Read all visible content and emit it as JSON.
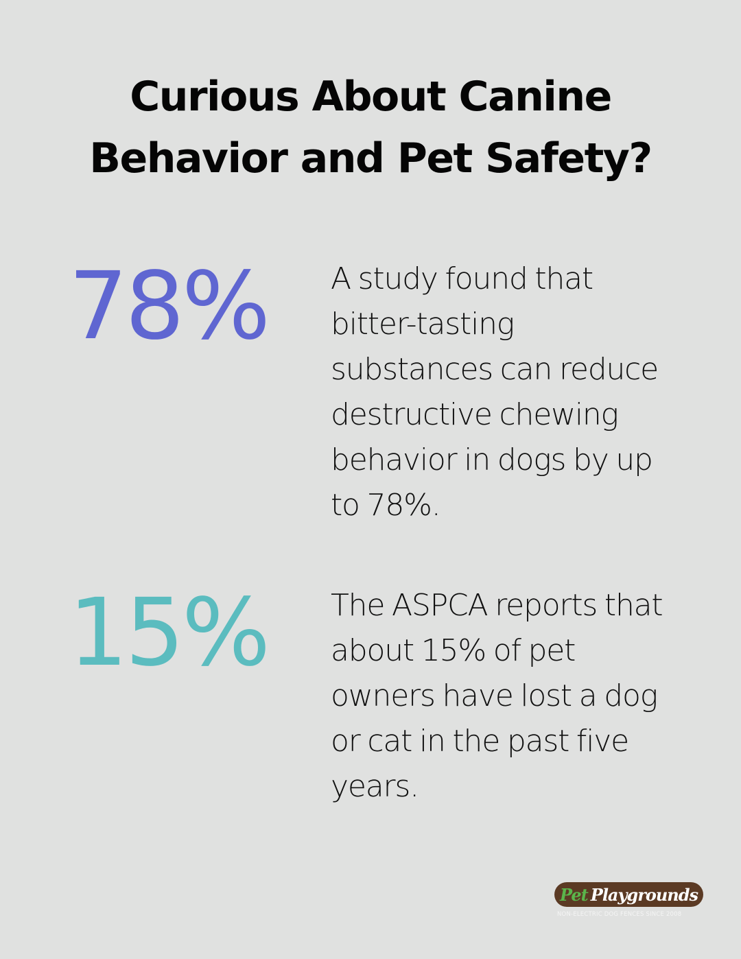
{
  "title": {
    "line1": "Curious About Canine",
    "line2": "Behavior and Pet Safety?"
  },
  "stats": [
    {
      "value": "78%",
      "color": "#5f66d1",
      "lines": [
        "A study found that",
        "bitter-tasting",
        "substances can reduce",
        "destructive chewing",
        "behavior in dogs by up",
        "to 78%."
      ]
    },
    {
      "value": "15%",
      "color": "#5bbcbf",
      "lines": [
        "The ASPCA reports that",
        "about 15% of pet",
        "owners have lost a dog",
        "or cat in the past five",
        "years."
      ]
    }
  ],
  "logo": {
    "part1": "Pet",
    "part2": "Playgrounds",
    "tagline": "NON-ELECTRIC DOG FENCES SINCE 2008",
    "colors": {
      "outline": "#5b3a24",
      "pet": "#5ab54b",
      "playgrounds": "#ffffff"
    }
  },
  "colors": {
    "background": "#e0e1e0",
    "text": "#0d0d0d"
  }
}
